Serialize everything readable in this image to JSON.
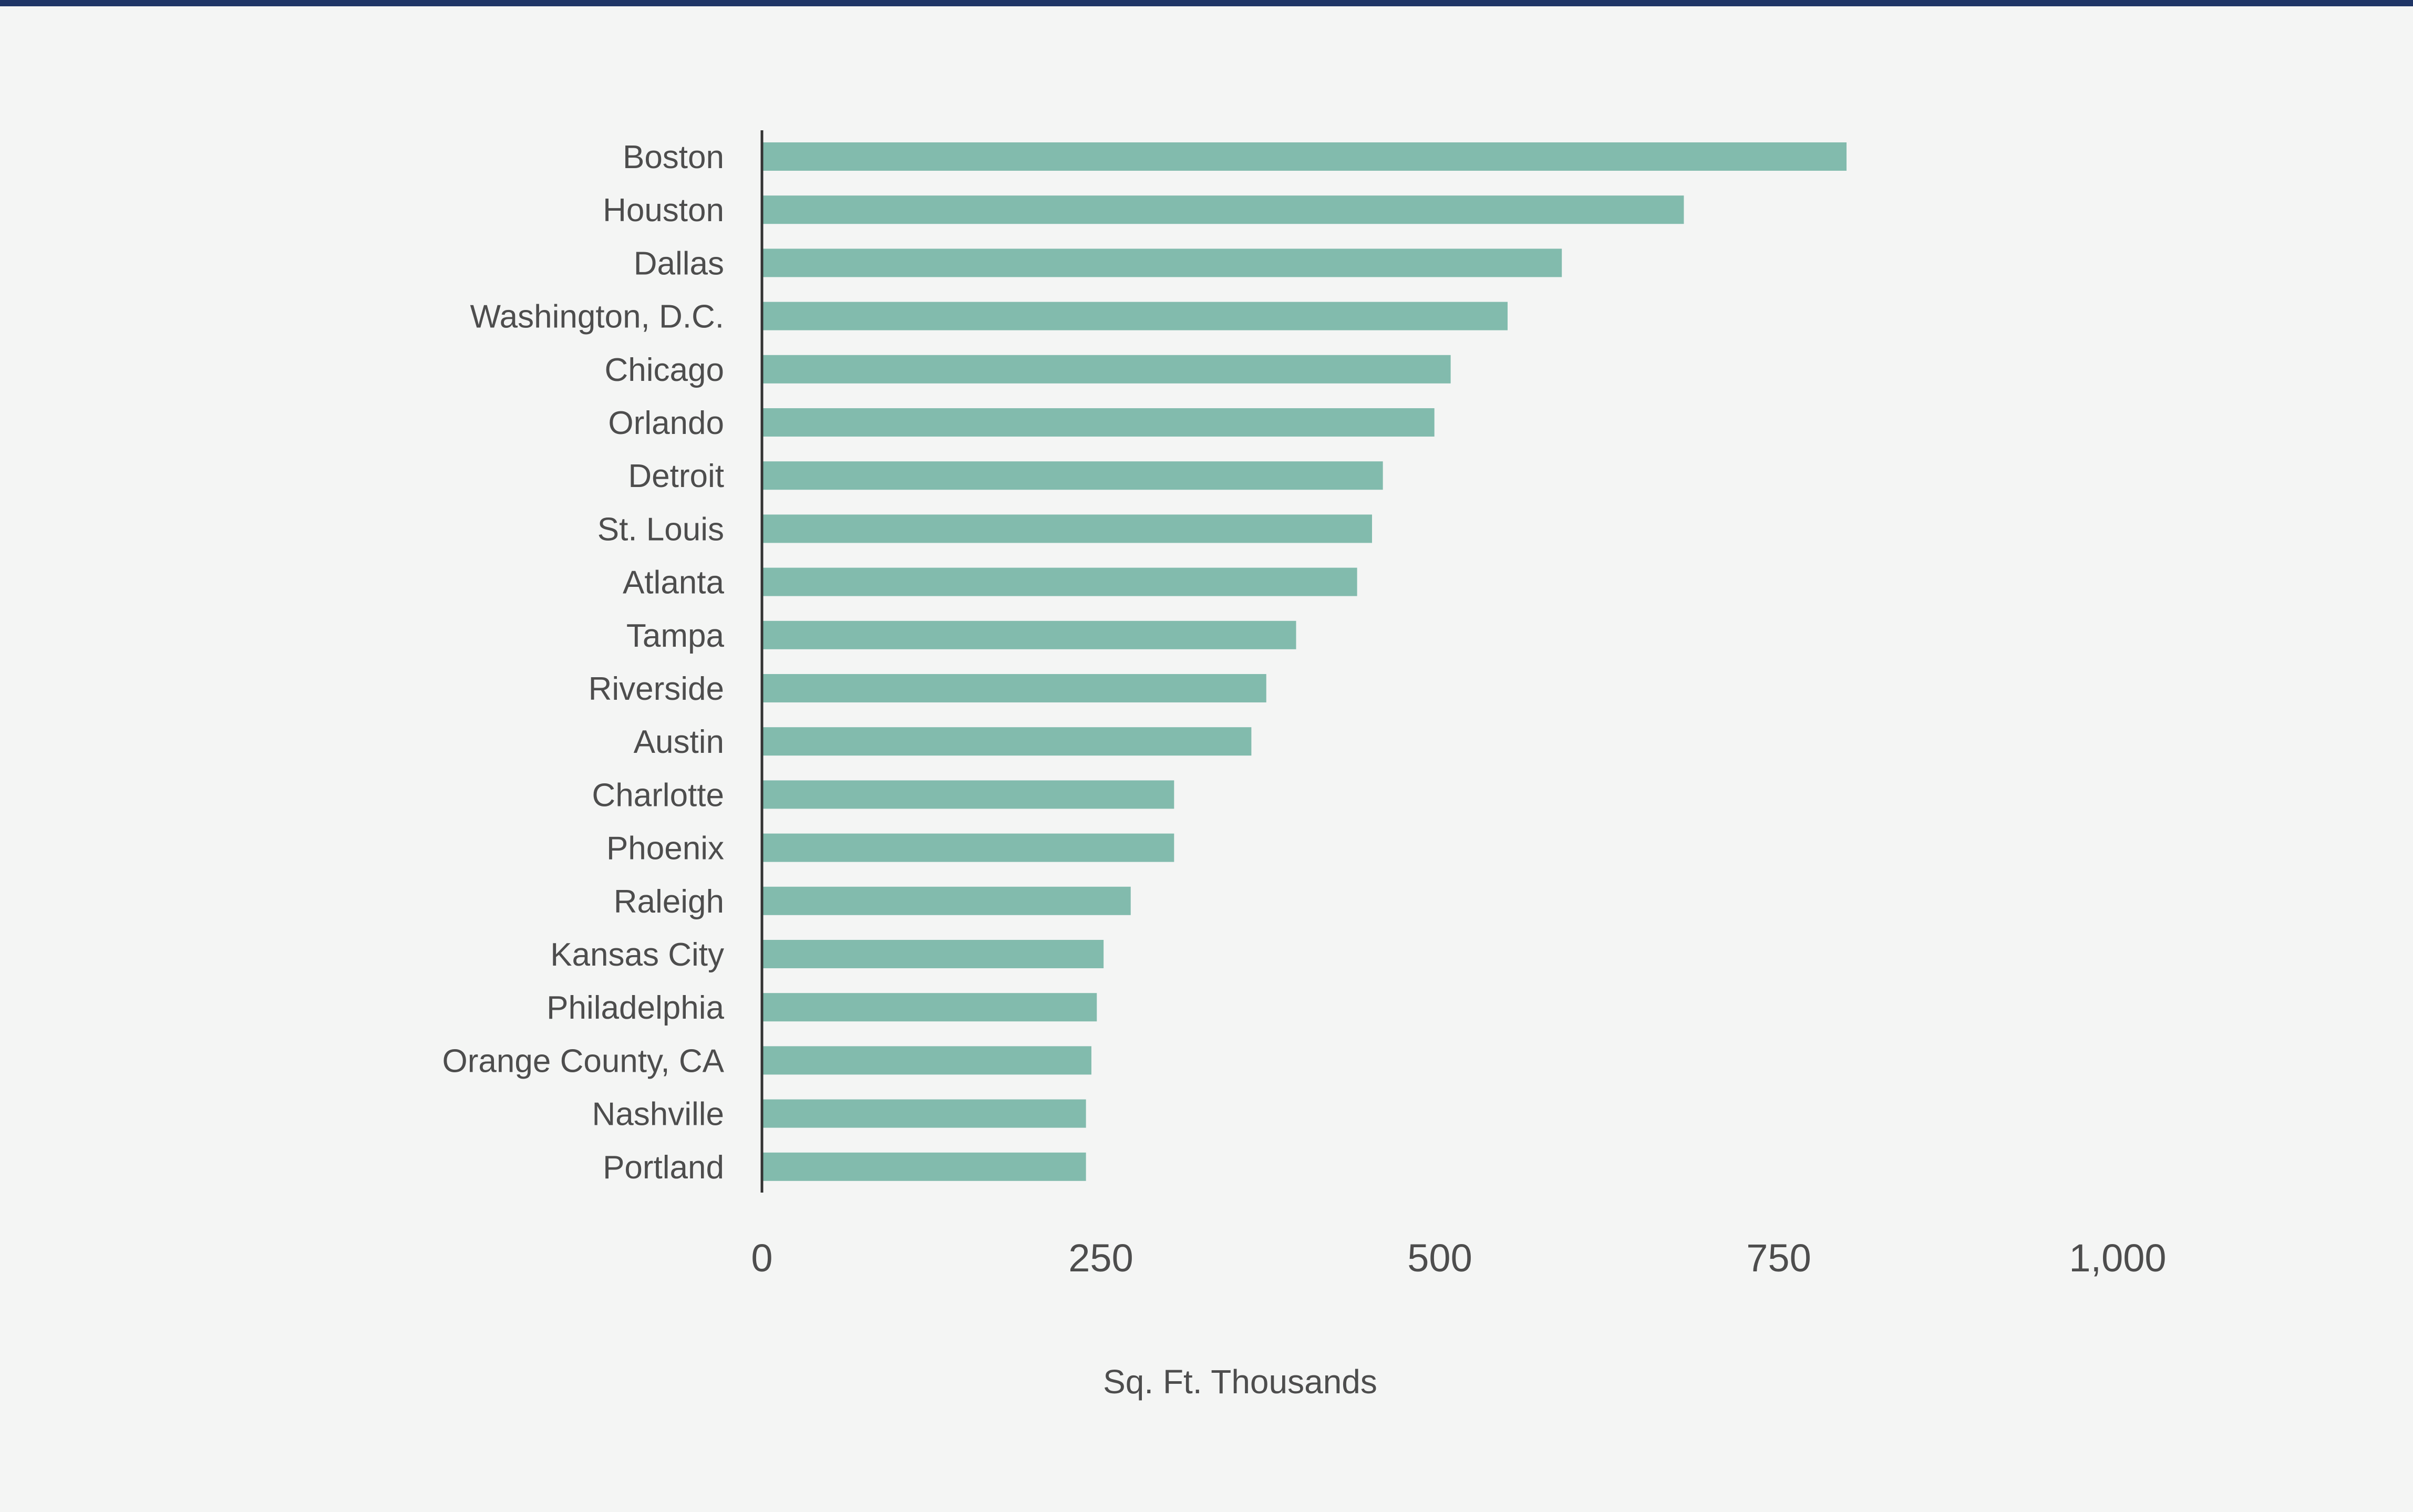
{
  "chart_data": {
    "type": "bar",
    "orientation": "horizontal",
    "title": "",
    "xlabel": "Sq. Ft. Thousands",
    "ylabel": "",
    "categories": [
      "Boston",
      "Houston",
      "Dallas",
      "Washington, D.C.",
      "Chicago",
      "Orlando",
      "Detroit",
      "St. Louis",
      "Atlanta",
      "Tampa",
      "Riverside",
      "Austin",
      "Charlotte",
      "Phoenix",
      "Raleigh",
      "Kansas City",
      "Philadelphia",
      "Orange County, CA",
      "Nashville",
      "Portland"
    ],
    "values": [
      800,
      680,
      590,
      550,
      508,
      496,
      458,
      450,
      439,
      394,
      372,
      361,
      304,
      304,
      272,
      252,
      247,
      243,
      239,
      239
    ],
    "xlim": [
      0,
      1000
    ],
    "xticks": [
      "0",
      "250",
      "500",
      "750",
      "1,000"
    ],
    "xtick_values": [
      0,
      250,
      500,
      750,
      1000
    ],
    "grid": false,
    "legend": "none",
    "colors": {
      "bar": "#82bbad",
      "axis": "#333333",
      "text": "#4d4d4d",
      "top_rule": "#1f3566",
      "background": "#f4f5f4"
    }
  }
}
